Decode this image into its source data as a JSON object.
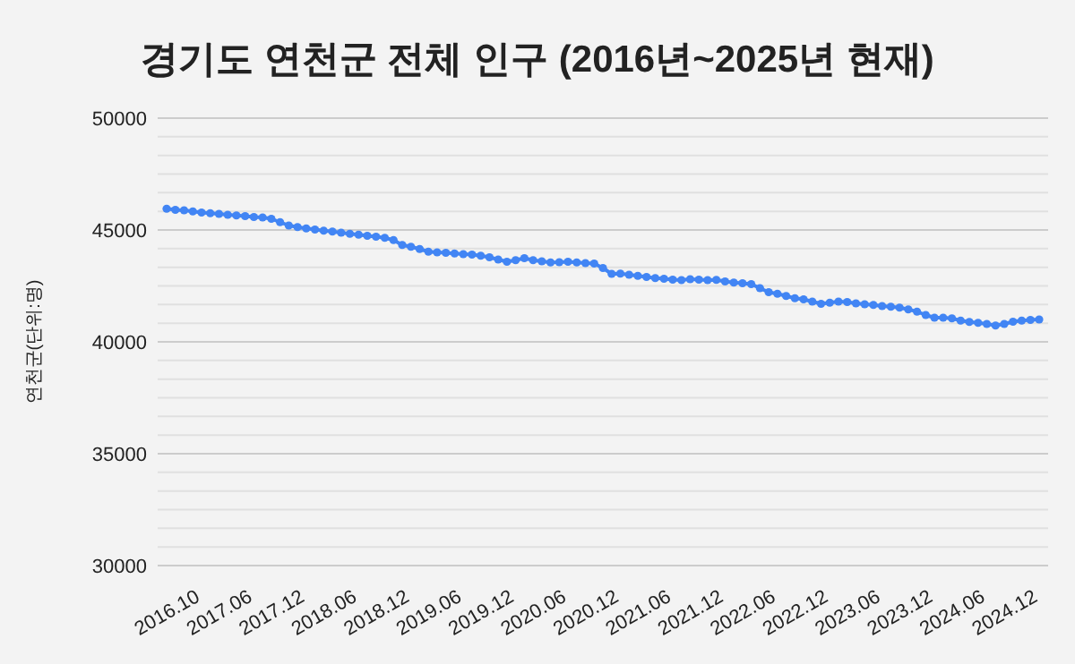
{
  "chart_data": {
    "type": "line",
    "title": "경기도 연천군 전체 인구 (2016년~2025년 현재)",
    "ylabel": "연천군(단위:명)",
    "categories": [
      "2016.10",
      null,
      null,
      null,
      null,
      null,
      "2017.06",
      null,
      null,
      null,
      null,
      null,
      "2017.12",
      null,
      null,
      null,
      null,
      null,
      "2018.06",
      null,
      null,
      null,
      null,
      null,
      "2018.12",
      null,
      null,
      null,
      null,
      null,
      "2019.06",
      null,
      null,
      null,
      null,
      null,
      "2019.12",
      null,
      null,
      null,
      null,
      null,
      "2020.06",
      null,
      null,
      null,
      null,
      null,
      "2020.12",
      null,
      null,
      null,
      null,
      null,
      "2021.06",
      null,
      null,
      null,
      null,
      null,
      "2021.12",
      null,
      null,
      null,
      null,
      null,
      "2022.06",
      null,
      null,
      null,
      null,
      null,
      "2022.12",
      null,
      null,
      null,
      null,
      null,
      "2023.06",
      null,
      null,
      null,
      null,
      null,
      "2023.12",
      null,
      null,
      null,
      null,
      null,
      "2024.06",
      null,
      null,
      null,
      null,
      null,
      "2024.12",
      null,
      null,
      null,
      null
    ],
    "series": [
      {
        "color": "#4285f4",
        "values": [
          45950,
          45900,
          45880,
          45830,
          45780,
          45750,
          45720,
          45680,
          45650,
          45620,
          45580,
          45560,
          45500,
          45350,
          45200,
          45130,
          45070,
          45020,
          44970,
          44930,
          44880,
          44830,
          44790,
          44740,
          44700,
          44650,
          44550,
          44330,
          44250,
          44150,
          44030,
          44000,
          43980,
          43950,
          43920,
          43900,
          43850,
          43780,
          43680,
          43580,
          43650,
          43740,
          43650,
          43600,
          43550,
          43560,
          43580,
          43550,
          43520,
          43500,
          43300,
          43040,
          43050,
          43000,
          42950,
          42900,
          42850,
          42820,
          42780,
          42760,
          42800,
          42780,
          42760,
          42770,
          42700,
          42650,
          42620,
          42580,
          42400,
          42220,
          42150,
          42050,
          41950,
          41900,
          41800,
          41700,
          41750,
          41800,
          41780,
          41720,
          41680,
          41650,
          41600,
          41570,
          41530,
          41450,
          41350,
          41200,
          41080,
          41080,
          41050,
          40950,
          40890,
          40850,
          40800,
          40730,
          40800,
          40900,
          40950,
          40980,
          41000
        ]
      }
    ],
    "ylim": [
      30000,
      50000
    ],
    "yticks": [
      30000,
      {
        "value": 30833.33,
        "label": null
      },
      {
        "value": 31666.67,
        "label": null
      },
      {
        "value": 32500,
        "label": null
      },
      {
        "value": 33333.33,
        "label": null
      },
      {
        "value": 34166.67,
        "label": null
      },
      35000,
      {
        "value": 35833.33,
        "label": null
      },
      {
        "value": 36666.67,
        "label": null
      },
      {
        "value": 37500,
        "label": null
      },
      {
        "value": 38333.33,
        "label": null
      },
      {
        "value": 39166.67,
        "label": null
      },
      40000,
      {
        "value": 40833.33,
        "label": null
      },
      {
        "value": 41666.67,
        "label": null
      },
      {
        "value": 42500,
        "label": null
      },
      {
        "value": 43333.33,
        "label": null
      },
      {
        "value": 44166.67,
        "label": null
      },
      45000,
      {
        "value": 45833.33,
        "label": null
      },
      {
        "value": 46666.67,
        "label": null
      },
      {
        "value": 47500,
        "label": null
      },
      {
        "value": 48333.33,
        "label": null
      },
      {
        "value": 49166.67,
        "label": null
      },
      50000
    ],
    "grid": "y",
    "marker": "circle",
    "line_style": "solid"
  }
}
